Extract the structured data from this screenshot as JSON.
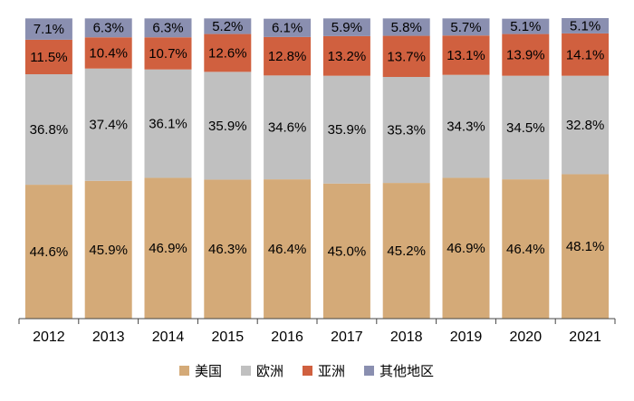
{
  "chart_data": {
    "type": "stacked-bar",
    "categories": [
      "2012",
      "2013",
      "2014",
      "2015",
      "2016",
      "2017",
      "2018",
      "2019",
      "2020",
      "2021"
    ],
    "series": [
      {
        "name": "美国",
        "color": "#d4aa78",
        "values": [
          44.6,
          45.9,
          46.9,
          46.3,
          46.4,
          45.0,
          45.2,
          46.9,
          46.4,
          48.1
        ],
        "value_labels": [
          "44.6%",
          "45.9%",
          "46.9%",
          "46.3%",
          "46.4%",
          "45.0%",
          "45.2%",
          "46.9%",
          "46.4%",
          "48.1%"
        ]
      },
      {
        "name": "欧洲",
        "color": "#c0c0c0",
        "values": [
          36.8,
          37.4,
          36.1,
          35.9,
          34.6,
          35.9,
          35.3,
          34.3,
          34.5,
          32.8
        ],
        "value_labels": [
          "36.8%",
          "37.4%",
          "36.1%",
          "35.9%",
          "34.6%",
          "35.9%",
          "35.3%",
          "34.3%",
          "34.5%",
          "32.8%"
        ]
      },
      {
        "name": "亚洲",
        "color": "#d0603f",
        "values": [
          11.5,
          10.4,
          10.7,
          12.6,
          12.8,
          13.2,
          13.7,
          13.1,
          13.9,
          14.1
        ],
        "value_labels": [
          "11.5%",
          "10.4%",
          "10.7%",
          "12.6%",
          "12.8%",
          "13.2%",
          "13.7%",
          "13.1%",
          "13.9%",
          "14.1%"
        ]
      },
      {
        "name": "其他地区",
        "color": "#8a8fb0",
        "values": [
          7.1,
          6.3,
          6.3,
          5.2,
          6.1,
          5.9,
          5.8,
          5.7,
          5.1,
          5.1
        ],
        "value_labels": [
          "7.1%",
          "6.3%",
          "6.3%",
          "5.2%",
          "6.1%",
          "5.9%",
          "5.8%",
          "5.7%",
          "5.1%",
          "5.1%"
        ]
      }
    ],
    "legend": "bottom"
  }
}
